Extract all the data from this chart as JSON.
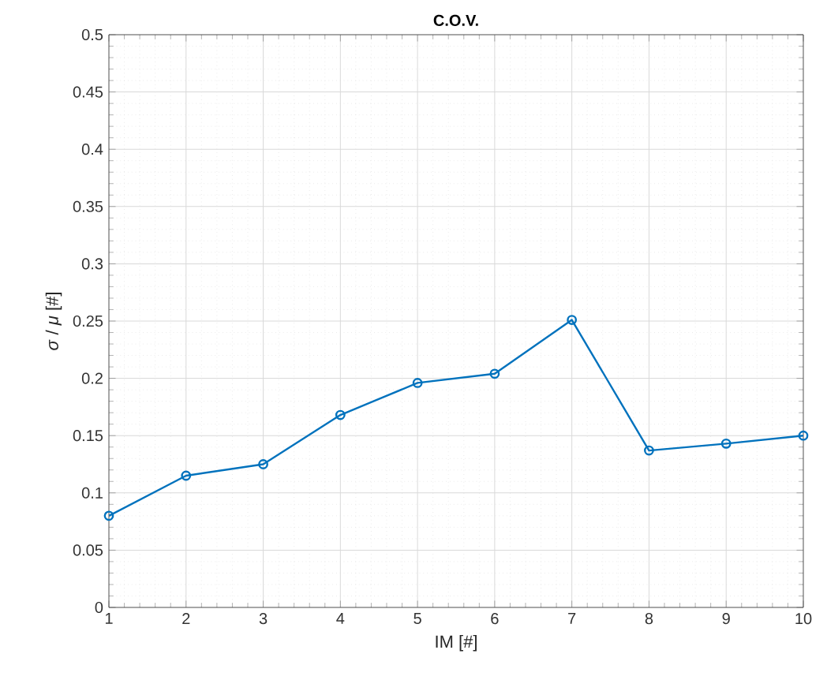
{
  "chart_data": {
    "type": "line",
    "title": "C.O.V.",
    "xlabel": "IM [#]",
    "ylabel": "*σ* / *μ*  [#]",
    "x": [
      1,
      2,
      3,
      4,
      5,
      6,
      7,
      8,
      9,
      10
    ],
    "series": [
      {
        "color": "#0072bd",
        "values": [
          0.08,
          0.115,
          0.125,
          0.168,
          0.196,
          0.204,
          0.251,
          0.137,
          0.143,
          0.15
        ]
      }
    ],
    "xlim": [
      1,
      10
    ],
    "ylim": [
      0,
      0.5
    ],
    "xticks": [
      1,
      2,
      3,
      4,
      5,
      6,
      7,
      8,
      9,
      10
    ],
    "yticks": [
      0,
      0.05,
      0.1,
      0.15,
      0.2,
      0.25,
      0.3,
      0.35,
      0.4,
      0.45,
      0.5
    ],
    "grid": true,
    "marker": "circle",
    "line_style": "solid"
  }
}
